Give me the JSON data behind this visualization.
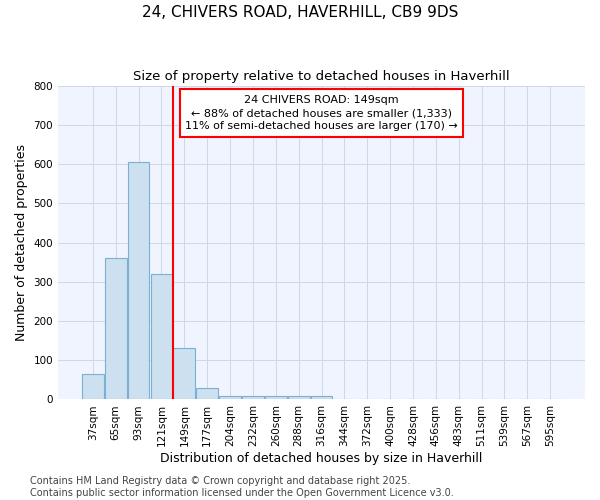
{
  "title1": "24, CHIVERS ROAD, HAVERHILL, CB9 9DS",
  "title2": "Size of property relative to detached houses in Haverhill",
  "xlabel": "Distribution of detached houses by size in Haverhill",
  "ylabel": "Number of detached properties",
  "categories": [
    "37sqm",
    "65sqm",
    "93sqm",
    "121sqm",
    "149sqm",
    "177sqm",
    "204sqm",
    "232sqm",
    "260sqm",
    "288sqm",
    "316sqm",
    "344sqm",
    "372sqm",
    "400sqm",
    "428sqm",
    "456sqm",
    "483sqm",
    "511sqm",
    "539sqm",
    "567sqm",
    "595sqm"
  ],
  "values": [
    65,
    360,
    605,
    320,
    130,
    30,
    10,
    10,
    10,
    10,
    10,
    0,
    0,
    0,
    0,
    0,
    0,
    0,
    0,
    0,
    0
  ],
  "bar_color": "#cce0f0",
  "bar_edge_color": "#7ab0d4",
  "ref_line_x": 3.5,
  "ref_line_color": "red",
  "annotation_text": "24 CHIVERS ROAD: 149sqm\n← 88% of detached houses are smaller (1,333)\n11% of semi-detached houses are larger (170) →",
  "annotation_box_edgecolor": "red",
  "annotation_text_color": "black",
  "ylim": [
    0,
    800
  ],
  "yticks": [
    0,
    100,
    200,
    300,
    400,
    500,
    600,
    700,
    800
  ],
  "footnote": "Contains HM Land Registry data © Crown copyright and database right 2025.\nContains public sector information licensed under the Open Government Licence v3.0.",
  "background_color": "#ffffff",
  "plot_bg_color": "#f0f4ff",
  "grid_color": "#d0d8e8",
  "title_fontsize": 11,
  "subtitle_fontsize": 9.5,
  "axis_label_fontsize": 9,
  "tick_fontsize": 7.5,
  "annotation_fontsize": 8,
  "footnote_fontsize": 7
}
